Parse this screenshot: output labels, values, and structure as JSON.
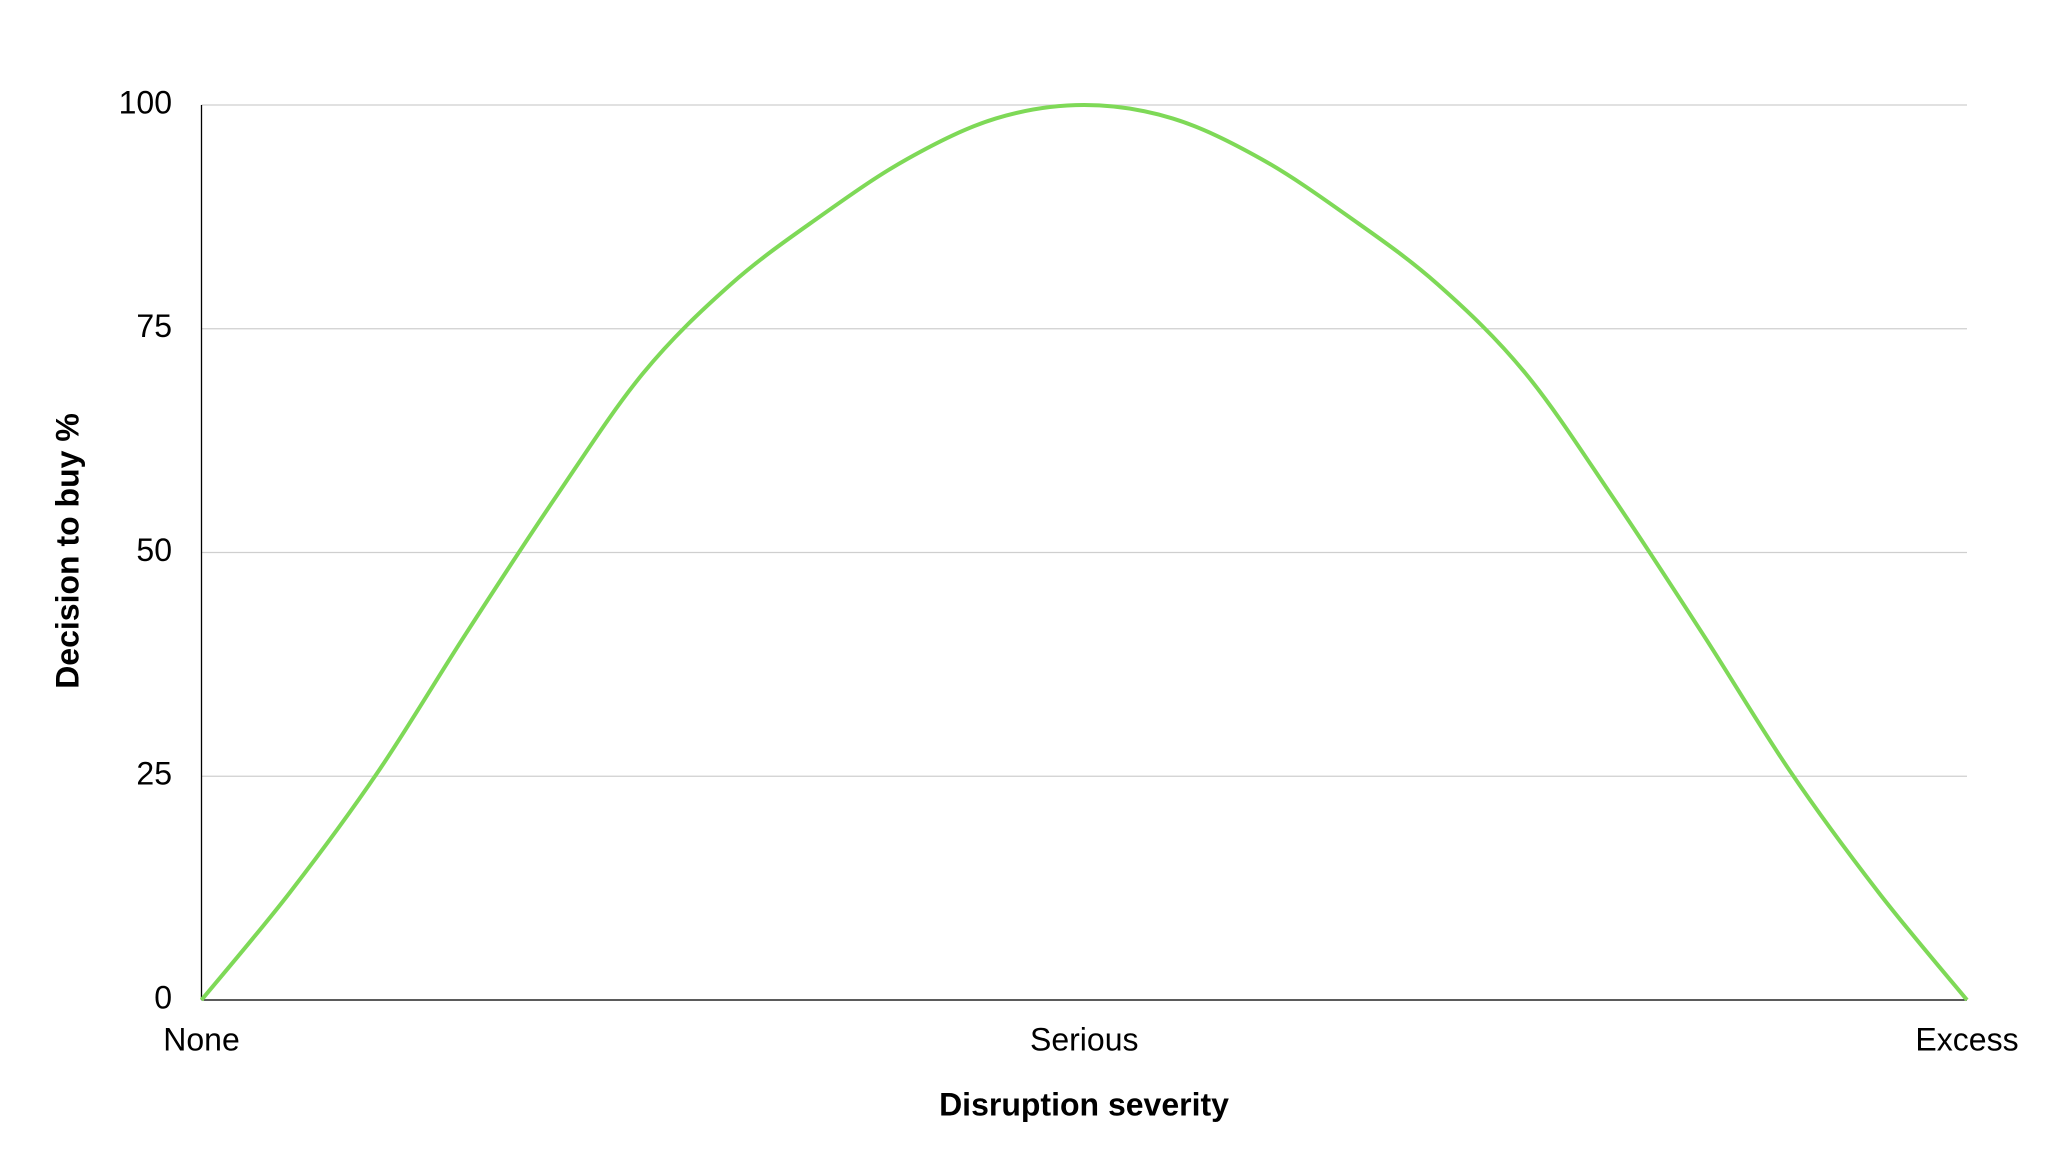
{
  "chart_data": {
    "type": "line",
    "x_label": "Disruption severity",
    "y_label": "Decision to buy %",
    "x": [
      0,
      0.1,
      0.2,
      0.3,
      0.4,
      0.5,
      0.6,
      0.7,
      0.8,
      0.9,
      1.0,
      1.1,
      1.2,
      1.3,
      1.4,
      1.5,
      1.6,
      1.7,
      1.8,
      1.9,
      2.0
    ],
    "series": [
      {
        "name": "Decision to buy",
        "color": "#7ed957",
        "values": [
          0,
          12,
          25.5,
          41,
          56,
          70,
          80,
          87.5,
          94,
          98.5,
          100,
          98.5,
          94,
          87.5,
          80,
          70,
          56,
          41,
          25.5,
          12,
          0
        ]
      }
    ],
    "xlim": [
      0,
      2
    ],
    "xticks": [
      {
        "value": 0,
        "label": "None"
      },
      {
        "value": 1,
        "label": "Serious"
      },
      {
        "value": 2,
        "label": "Excess"
      }
    ],
    "ylim": [
      0,
      100
    ],
    "yticks": [
      0,
      25,
      50,
      75,
      100
    ],
    "grid": true
  }
}
